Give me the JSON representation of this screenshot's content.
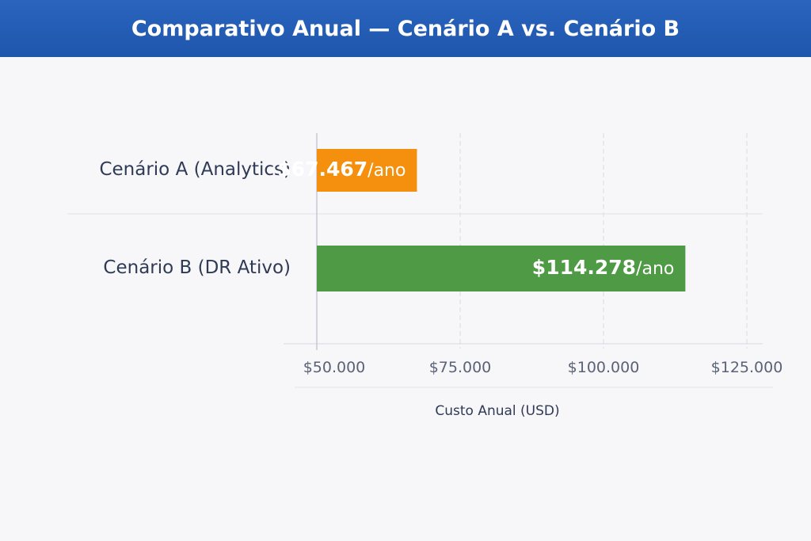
{
  "chart_data": {
    "type": "bar",
    "orientation": "horizontal",
    "title": "Comparativo Anual — Cenário A vs. Cenário B",
    "categories": [
      "Cenário A (Analytics)",
      "Cenário B (DR Ativo)"
    ],
    "values": [
      67467,
      114278
    ],
    "value_labels": [
      "$67.467",
      "$114.278"
    ],
    "value_unit": "/ano",
    "colors": [
      "#f5900f",
      "#4f9a44"
    ],
    "xlabel": "Custo Anual (USD)",
    "ylabel": "",
    "xlim": [
      50000,
      125000
    ],
    "xticks": [
      50000,
      75000,
      100000,
      125000
    ],
    "xtick_labels": [
      "$50.000",
      "$75.000",
      "$100.000",
      "$125.000"
    ],
    "grid": true
  }
}
